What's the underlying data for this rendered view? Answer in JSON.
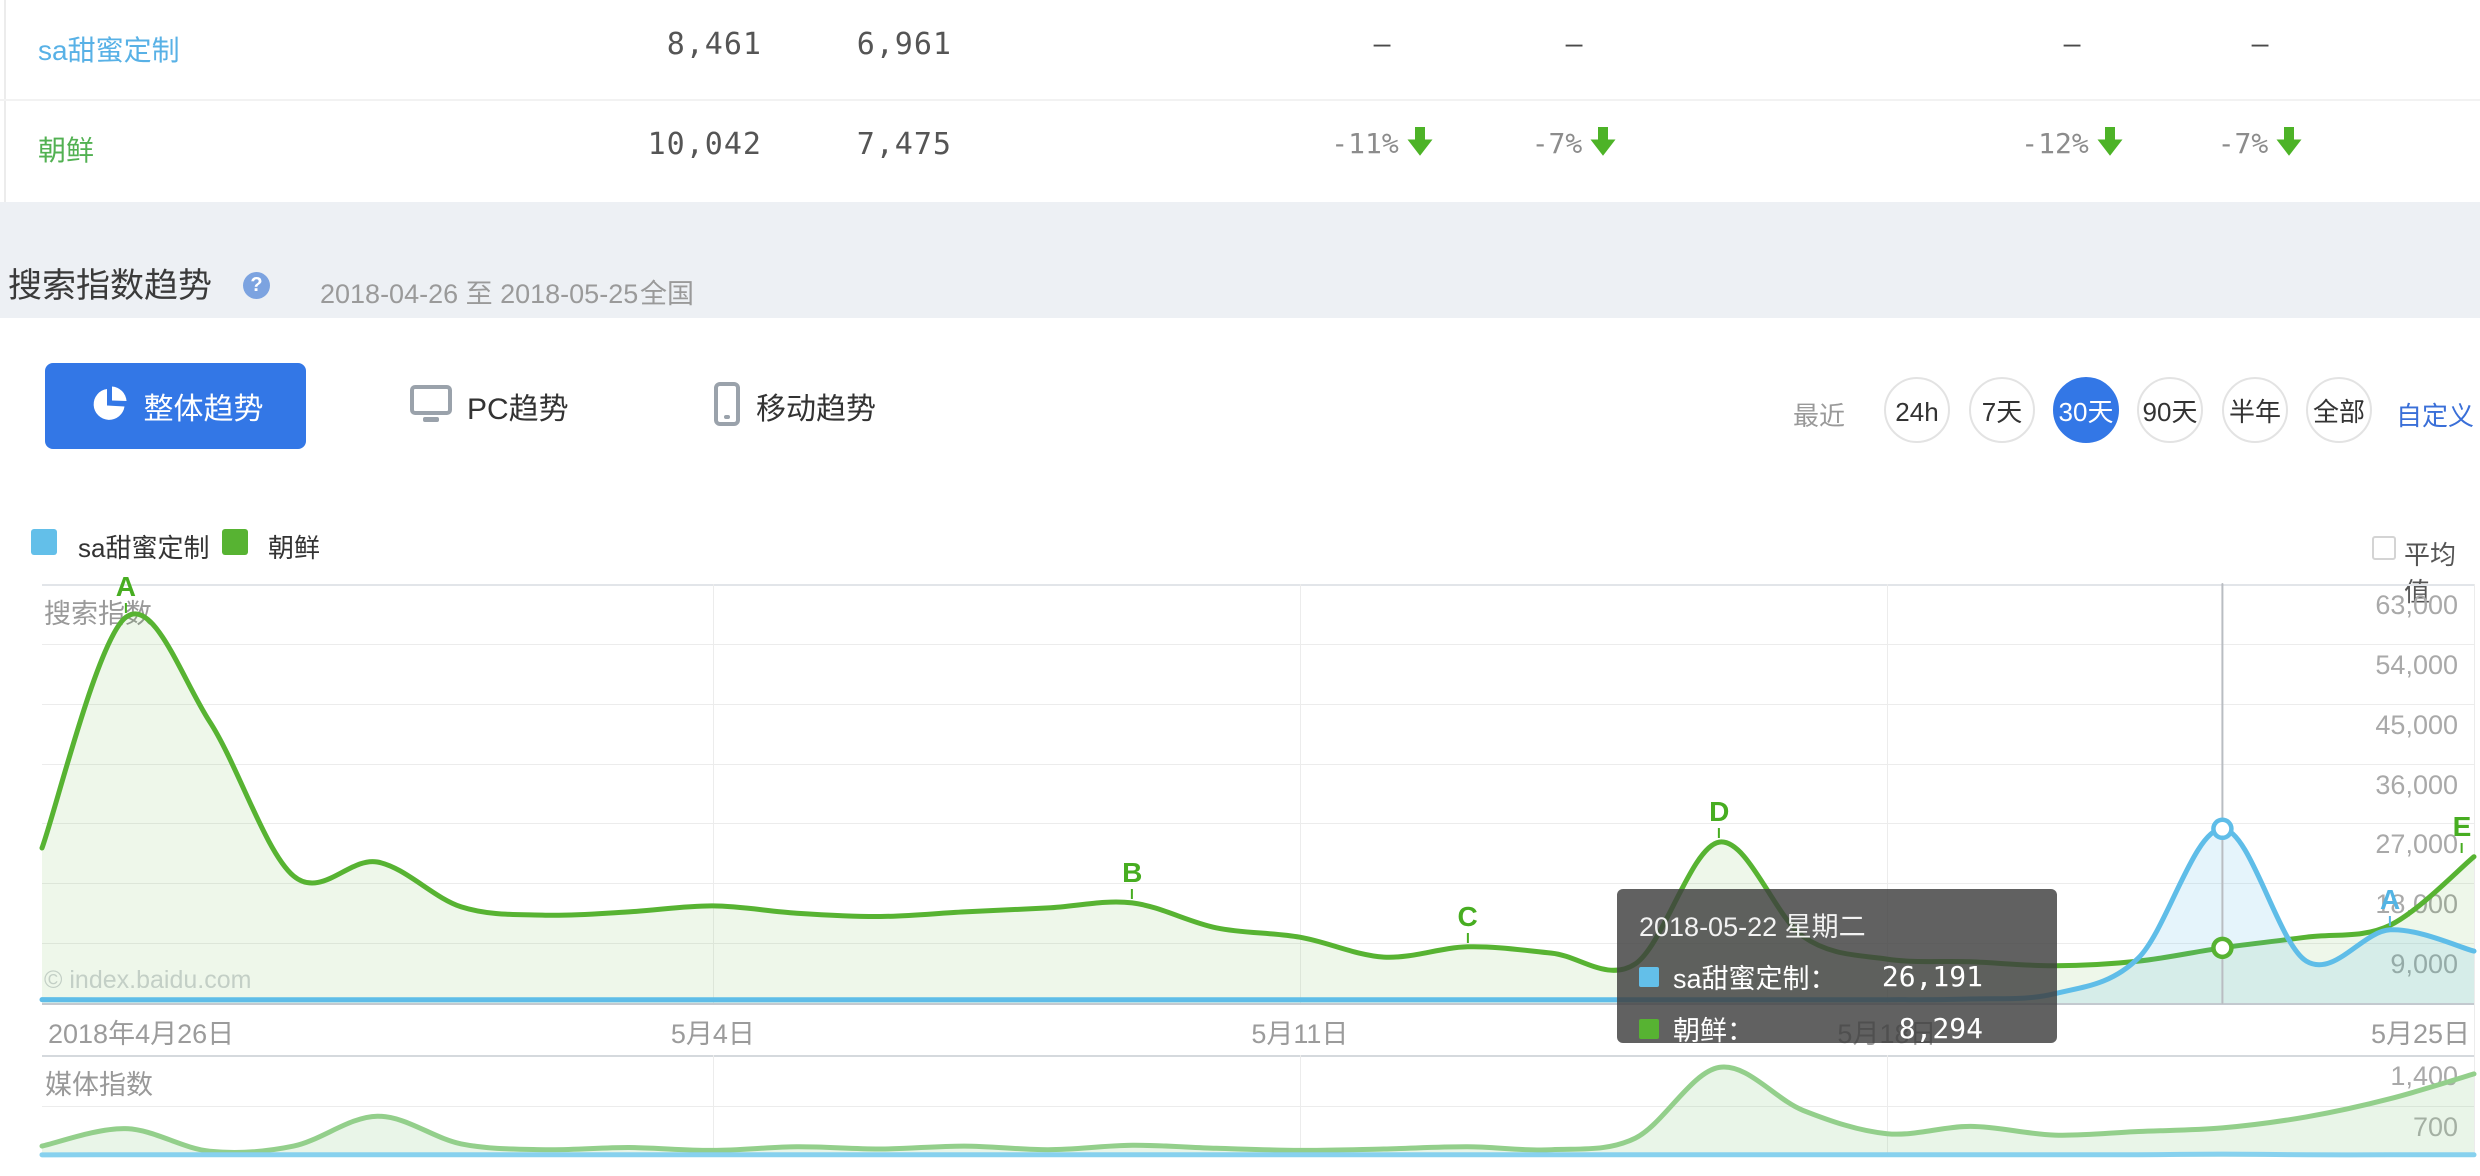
{
  "table": {
    "rows": [
      {
        "keyword": "sa甜蜜定制",
        "color": "#58b1e6",
        "overall_avg": "8,461",
        "mobile_avg": "6,961",
        "changes": [
          "–",
          "–",
          "–",
          "–"
        ],
        "change_style": "dash"
      },
      {
        "keyword": "朝鲜",
        "color": "#52b152",
        "overall_avg": "10,042",
        "mobile_avg": "7,475",
        "changes": [
          "-11%",
          "-7%",
          "-12%",
          "-7%"
        ],
        "change_style": "down"
      }
    ],
    "arrow_color": "#4db327"
  },
  "section_header": {
    "title": "搜索指数趋势",
    "help": "?",
    "date_range": "2018-04-26 至 2018-05-25",
    "region": "全国"
  },
  "tabs": [
    {
      "label": "整体趋势",
      "icon": "pie-chart-icon",
      "active": true
    },
    {
      "label": "PC趋势",
      "icon": "desktop-icon",
      "active": false
    },
    {
      "label": "移动趋势",
      "icon": "mobile-icon",
      "active": false
    }
  ],
  "time_range": {
    "prefix": "最近",
    "options": [
      {
        "label": "24h",
        "active": false
      },
      {
        "label": "7天",
        "active": false
      },
      {
        "label": "30天",
        "active": true
      },
      {
        "label": "90天",
        "active": false
      },
      {
        "label": "半年",
        "active": false
      },
      {
        "label": "全部",
        "active": false
      }
    ],
    "custom": "自定义",
    "active_color": "#3377e6",
    "custom_color": "#3a6fd8"
  },
  "legend": {
    "items": [
      {
        "label": "sa甜蜜定制",
        "color": "#63bfe9"
      },
      {
        "label": "朝鲜",
        "color": "#57b332"
      }
    ],
    "average_label": "平均值"
  },
  "tooltip": {
    "date": "2018-05-22 星期二",
    "rows": [
      {
        "label": "sa甜蜜定制：",
        "value": "26,191",
        "color": "#63bfe9"
      },
      {
        "label": "朝鲜：",
        "value": "8,294",
        "color": "#57b332"
      }
    ]
  },
  "watermark": "© index.baidu.com",
  "chart_data": [
    {
      "type": "line",
      "title": "搜索指数",
      "ylabel": "搜索指数",
      "ylim": [
        0,
        63000
      ],
      "grid": true,
      "legend_position": "top-left",
      "y_ticks": [
        "63,000",
        "54,000",
        "45,000",
        "36,000",
        "27,000",
        "18,000",
        "9,000"
      ],
      "x_tick_labels": [
        {
          "label": "2018年4月26日",
          "day": 0,
          "align": "left"
        },
        {
          "label": "5月4日",
          "day": 8,
          "align": "center"
        },
        {
          "label": "5月11日",
          "day": 15,
          "align": "center"
        },
        {
          "label": "5月18日",
          "day": 22,
          "align": "center"
        },
        {
          "label": "5月25日",
          "day": 29,
          "align": "right"
        }
      ],
      "x": [
        "2018-04-26",
        "2018-04-27",
        "2018-04-28",
        "2018-04-29",
        "2018-04-30",
        "2018-05-01",
        "2018-05-02",
        "2018-05-03",
        "2018-05-04",
        "2018-05-05",
        "2018-05-06",
        "2018-05-07",
        "2018-05-08",
        "2018-05-09",
        "2018-05-10",
        "2018-05-11",
        "2018-05-12",
        "2018-05-13",
        "2018-05-14",
        "2018-05-15",
        "2018-05-16",
        "2018-05-17",
        "2018-05-18",
        "2018-05-19",
        "2018-05-20",
        "2018-05-21",
        "2018-05-22",
        "2018-05-23",
        "2018-05-24",
        "2018-05-25"
      ],
      "series": [
        {
          "name": "sa甜蜜定制",
          "color": "#5fbde8",
          "fill": "rgba(95,189,232,0.16)",
          "values": [
            500,
            500,
            500,
            500,
            500,
            500,
            500,
            500,
            500,
            500,
            500,
            500,
            500,
            500,
            500,
            500,
            500,
            500,
            500,
            500,
            500,
            500,
            500,
            600,
            1400,
            6800,
            26191,
            6300,
            11000,
            7800
          ],
          "annotations": [
            {
              "label": "A",
              "index": 28
            }
          ]
        },
        {
          "name": "朝鲜",
          "color": "#57b332",
          "fill": "rgba(87,179,50,0.10)",
          "values": [
            23300,
            58000,
            42300,
            19100,
            21200,
            14450,
            13200,
            13700,
            14600,
            13500,
            13000,
            13700,
            14300,
            15050,
            11300,
            9900,
            6900,
            8450,
            7500,
            5900,
            24200,
            10000,
            6600,
            6200,
            5600,
            6300,
            8294,
            9900,
            11700,
            22000
          ],
          "annotations": [
            {
              "label": "A",
              "index": 1
            },
            {
              "label": "B",
              "index": 13
            },
            {
              "label": "C",
              "index": 17
            },
            {
              "label": "D",
              "index": 20
            },
            {
              "label": "E",
              "index": 29
            }
          ]
        }
      ],
      "hover": {
        "date": "2018-05-22",
        "index": 26
      }
    },
    {
      "type": "line",
      "title": "媒体指数",
      "ylabel": "媒体指数",
      "ylim": [
        0,
        1400
      ],
      "grid": true,
      "y_ticks": [
        "1,400",
        "700"
      ],
      "series": [
        {
          "name": "sa甜蜜定制",
          "color": "#87d1ee",
          "fill": "none",
          "values": [
            30,
            30,
            30,
            30,
            30,
            30,
            30,
            30,
            30,
            30,
            30,
            30,
            30,
            30,
            30,
            30,
            30,
            30,
            30,
            30,
            30,
            30,
            30,
            30,
            30,
            30,
            40,
            30,
            30,
            30
          ]
        },
        {
          "name": "朝鲜",
          "color": "#93cf8b",
          "fill": "rgba(147,207,139,0.20)",
          "values": [
            150,
            390,
            80,
            150,
            560,
            180,
            100,
            130,
            90,
            140,
            110,
            150,
            100,
            160,
            120,
            90,
            110,
            140,
            100,
            260,
            1230,
            640,
            320,
            420,
            300,
            350,
            400,
            550,
            800,
            1140
          ]
        }
      ]
    }
  ]
}
